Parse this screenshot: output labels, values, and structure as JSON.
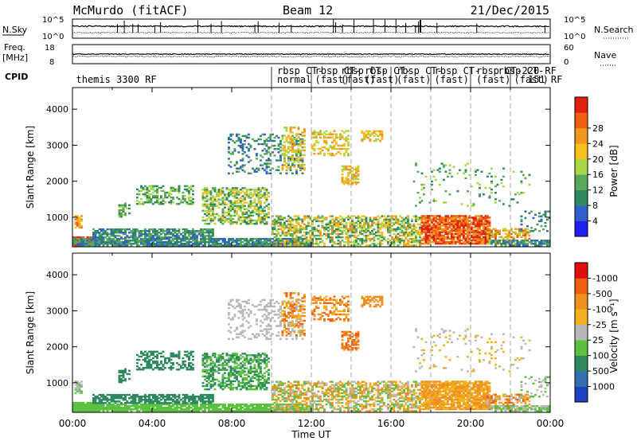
{
  "header": {
    "station": "McMurdo (fitACF)",
    "beam": "Beam 12",
    "date": "21/Dec/2015"
  },
  "panels": {
    "nsky": {
      "left_label": "N.Sky",
      "left_ticks": [
        "10^5",
        "10^0"
      ],
      "right_label": "N.Search",
      "right_ticks": [
        "10^5",
        "10^0"
      ]
    },
    "freq": {
      "left_label_1": "Freq.",
      "left_label_2": "[MHz]",
      "left_ticks": [
        "18",
        "8"
      ],
      "right_label": "Nave",
      "right_ticks": [
        "60",
        "0"
      ]
    },
    "cpid": {
      "label": "CPID",
      "entries": [
        {
          "text": "themis 3300 RF",
          "x": 0.1,
          "row": 2
        },
        {
          "text": "rbsp CT-",
          "x": 10.2,
          "row": 1
        },
        {
          "text": "normal",
          "x": 10.2,
          "row": 2
        },
        {
          "text": "rbsp CT-",
          "x": 12.1,
          "row": 1
        },
        {
          "text": "(fast)",
          "x": 12.1,
          "row": 2
        },
        {
          "text": "rbsp CT-",
          "x": 13.4,
          "row": 1
        },
        {
          "text": "(fast)",
          "x": 13.4,
          "row": 2
        },
        {
          "text": "rbsp CT-",
          "x": 14.6,
          "row": 1
        },
        {
          "text": "(fast)",
          "x": 14.6,
          "row": 2
        },
        {
          "text": "rbsp CT-",
          "x": 16.2,
          "row": 1
        },
        {
          "text": "(fast)",
          "x": 16.2,
          "row": 2
        },
        {
          "text": "rbsp CT-",
          "x": 18.1,
          "row": 1
        },
        {
          "text": "(fast)",
          "x": 18.1,
          "row": 2
        },
        {
          "text": "rbsp CT-",
          "x": 20.2,
          "row": 1
        },
        {
          "text": "(fast)",
          "x": 20.2,
          "row": 2
        },
        {
          "text": "rbsp CT-",
          "x": 21.3,
          "row": 1
        },
        {
          "text": "(fast)",
          "x": 22.1,
          "row": 2
        },
        {
          "text": "220 RF",
          "x": 22.5,
          "row": 1
        },
        {
          "text": "151 RF",
          "x": 22.8,
          "row": 2
        }
      ]
    }
  },
  "chart_data": [
    {
      "type": "heatmap",
      "name": "power",
      "ylabel": "Slant Range [km]",
      "yticks": [
        1000,
        2000,
        3000,
        4000
      ],
      "ylim": [
        180,
        4600
      ],
      "colorbar": {
        "label": "Power [dB]",
        "ticks": [
          "4",
          "8",
          "12",
          "16",
          "20",
          "24",
          "28"
        ],
        "colors": [
          "#2020ee",
          "#3060cc",
          "#2e8a5e",
          "#5aa85a",
          "#a8d848",
          "#f2c020",
          "#f29620",
          "#f06010",
          "#e02010"
        ]
      }
    },
    {
      "type": "heatmap",
      "name": "velocity",
      "ylabel": "Slant Range [km]",
      "yticks": [
        1000,
        2000,
        3000,
        4000
      ],
      "ylim": [
        180,
        4600
      ],
      "xlabel": "Time UT",
      "xticks": [
        "00:00",
        "04:00",
        "08:00",
        "12:00",
        "16:00",
        "20:00",
        "00:00"
      ],
      "xlim": [
        0,
        24
      ],
      "colorbar": {
        "label": "Velocity [m s^-1]",
        "ticks": [
          "1000",
          "500",
          "100",
          "25",
          "-25",
          "-100",
          "-500",
          "-1000"
        ],
        "colors": [
          "#2040c0",
          "#3070b0",
          "#2e8a5e",
          "#5cc040",
          "#b8b8b8",
          "#f5b020",
          "#f09020",
          "#f06010",
          "#e01010"
        ]
      }
    }
  ],
  "program_boundaries_ut": [
    10.0,
    12.0,
    14.0,
    16.0,
    18.0,
    20.0,
    22.0
  ]
}
